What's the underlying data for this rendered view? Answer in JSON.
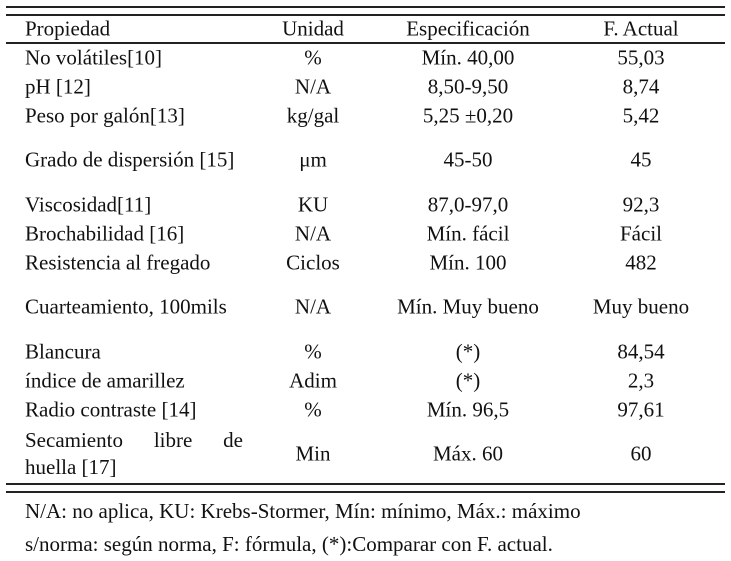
{
  "table": {
    "headers": [
      "Propiedad",
      "Unidad",
      "Especificación",
      "F. Actual"
    ],
    "rows": [
      {
        "prop": "No volátiles[10]",
        "unit": "%",
        "spec": "Mín. 40,00",
        "actual": "55,03"
      },
      {
        "prop": "pH [12]",
        "unit": "N/A",
        "spec": "8,50-9,50",
        "actual": "8,74"
      },
      {
        "prop": "Peso por galón[13]",
        "unit": "kg/gal",
        "spec": "5,25 ±0,20",
        "actual": "5,42"
      },
      {
        "prop": "Grado de dispersión [15]",
        "unit": "μm",
        "spec": "45-50",
        "actual": "45"
      },
      {
        "prop": "Viscosidad[11]",
        "unit": "KU",
        "spec": "87,0-97,0",
        "actual": "92,3"
      },
      {
        "prop": "Brochabilidad [16]",
        "unit": "N/A",
        "spec": "Mín. fácil",
        "actual": "Fácil"
      },
      {
        "prop": "Resistencia al fregado",
        "unit": "Ciclos",
        "spec": "Mín. 100",
        "actual": "482"
      },
      {
        "prop": "Cuarteamiento, 100mils",
        "unit": "N/A",
        "spec": "Mín. Muy bueno",
        "actual": "Muy bueno"
      },
      {
        "prop": "Blancura",
        "unit": "%",
        "spec": "(*)",
        "actual": "84,54"
      },
      {
        "prop": "índice de amarillez",
        "unit": "Adim",
        "spec": "(*)",
        "actual": "2,3"
      },
      {
        "prop": "Radio contraste [14]",
        "unit": "%",
        "spec": "Mín. 96,5",
        "actual": "97,61"
      },
      {
        "prop": "Secamiento libre de huella [17]",
        "unit": "Min",
        "spec": "Máx. 60",
        "actual": "60"
      }
    ]
  },
  "footnote": {
    "line1": "N/A: no aplica, KU: Krebs-Stormer, Mín: mínimo, Máx.: máximo",
    "line2": "s/norma: según norma, F: fórmula, (*):Comparar con F. actual."
  }
}
